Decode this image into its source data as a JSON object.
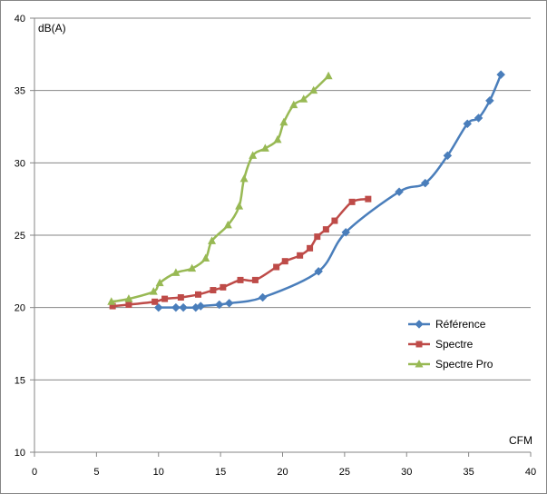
{
  "chart_data": {
    "type": "line",
    "title": "",
    "xlabel": "CFM",
    "ylabel": "dB(A)",
    "xlim": [
      0,
      40
    ],
    "ylim": [
      10,
      40
    ],
    "xticks": [
      0,
      5,
      10,
      15,
      20,
      25,
      30,
      35,
      40
    ],
    "yticks": [
      10,
      15,
      20,
      25,
      30,
      35,
      40
    ],
    "grid": "horizontal major gridlines",
    "legend_position": "right",
    "series": [
      {
        "name": "Référence",
        "color": "#4a7ebb",
        "marker": "diamond",
        "points": [
          [
            10.0,
            20.0
          ],
          [
            11.4,
            20.0
          ],
          [
            12.0,
            20.0
          ],
          [
            13.0,
            20.0
          ],
          [
            13.4,
            20.1
          ],
          [
            14.9,
            20.2
          ],
          [
            15.7,
            20.3
          ],
          [
            18.4,
            20.7
          ],
          [
            22.9,
            22.5
          ],
          [
            25.1,
            25.2
          ],
          [
            29.4,
            28.0
          ],
          [
            31.5,
            28.6
          ],
          [
            33.3,
            30.5
          ],
          [
            34.9,
            32.7
          ],
          [
            35.8,
            33.1
          ],
          [
            36.7,
            34.3
          ],
          [
            37.6,
            36.1
          ]
        ]
      },
      {
        "name": "Spectre",
        "color": "#be4b48",
        "marker": "square",
        "points": [
          [
            6.3,
            20.1
          ],
          [
            7.6,
            20.2
          ],
          [
            9.7,
            20.4
          ],
          [
            10.5,
            20.6
          ],
          [
            11.8,
            20.7
          ],
          [
            13.2,
            20.9
          ],
          [
            14.4,
            21.2
          ],
          [
            15.2,
            21.4
          ],
          [
            16.6,
            21.9
          ],
          [
            17.8,
            21.9
          ],
          [
            19.5,
            22.8
          ],
          [
            20.2,
            23.2
          ],
          [
            21.4,
            23.6
          ],
          [
            22.2,
            24.1
          ],
          [
            22.8,
            24.9
          ],
          [
            23.5,
            25.4
          ],
          [
            24.2,
            26.0
          ],
          [
            25.6,
            27.3
          ],
          [
            26.9,
            27.5
          ]
        ]
      },
      {
        "name": "Spectre Pro",
        "color": "#98b954",
        "marker": "triangle",
        "points": [
          [
            6.2,
            20.4
          ],
          [
            7.6,
            20.6
          ],
          [
            9.6,
            21.1
          ],
          [
            10.1,
            21.7
          ],
          [
            11.4,
            22.4
          ],
          [
            12.7,
            22.7
          ],
          [
            13.8,
            23.4
          ],
          [
            14.3,
            24.6
          ],
          [
            15.6,
            25.7
          ],
          [
            16.5,
            27.0
          ],
          [
            16.9,
            28.9
          ],
          [
            17.6,
            30.5
          ],
          [
            18.6,
            31.0
          ],
          [
            19.6,
            31.6
          ],
          [
            20.1,
            32.8
          ],
          [
            20.9,
            34.0
          ],
          [
            21.7,
            34.4
          ],
          [
            22.5,
            35.0
          ],
          [
            23.7,
            36.0
          ]
        ]
      }
    ]
  }
}
